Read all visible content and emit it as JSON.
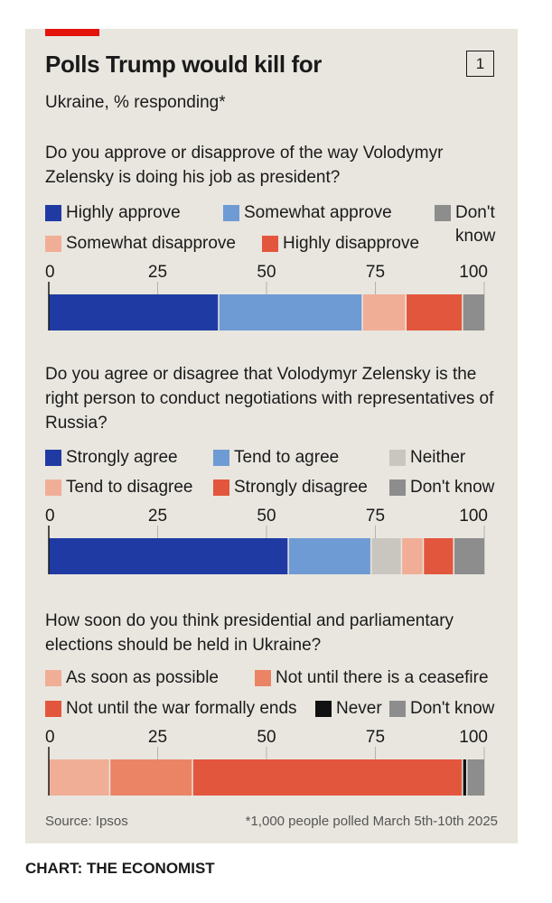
{
  "header": {
    "title": "Polls Trump would kill for",
    "chart_number": "1",
    "subtitle": "Ukraine, % responding*"
  },
  "footer": {
    "source": "Source: Ipsos",
    "footnote": "*1,000 people polled March 5th-10th 2025",
    "credit": "CHART: THE ECONOMIST"
  },
  "axis": {
    "ticks": [
      "0",
      "25",
      "50",
      "75",
      "100"
    ],
    "tick_values": [
      0,
      25,
      50,
      75,
      100
    ]
  },
  "chart_data": [
    {
      "type": "bar",
      "stacked": true,
      "orientation": "horizontal",
      "question": "Do you approve or disapprove of the way Volodymyr Zelensky is doing his job as president?",
      "xlim": [
        0,
        100
      ],
      "series": [
        {
          "name": "Highly approve",
          "value": 39,
          "color": "#1f3ba3"
        },
        {
          "name": "Somewhat approve",
          "value": 33,
          "color": "#6f9bd4"
        },
        {
          "name": "Somewhat disapprove",
          "value": 10,
          "color": "#f1ae97"
        },
        {
          "name": "Highly disapprove",
          "value": 13,
          "color": "#e3563e"
        },
        {
          "name": "Don't know",
          "value": 5,
          "color": "#8d8d8d"
        }
      ]
    },
    {
      "type": "bar",
      "stacked": true,
      "orientation": "horizontal",
      "question": "Do you agree or disagree that Volodymyr Zelensky is the right person to conduct negotiations with representatives of Russia?",
      "xlim": [
        0,
        100
      ],
      "series": [
        {
          "name": "Strongly agree",
          "value": 55,
          "color": "#1f3ba3"
        },
        {
          "name": "Tend to agree",
          "value": 19,
          "color": "#6f9bd4"
        },
        {
          "name": "Neither",
          "value": 7,
          "color": "#c9c6bf"
        },
        {
          "name": "Tend to disagree",
          "value": 5,
          "color": "#f1ae97"
        },
        {
          "name": "Strongly disagree",
          "value": 7,
          "color": "#e3563e"
        },
        {
          "name": "Don't know",
          "value": 7,
          "color": "#8d8d8d"
        }
      ]
    },
    {
      "type": "bar",
      "stacked": true,
      "orientation": "horizontal",
      "question": "How soon do you think presidential and parliamentary elections should be held in Ukraine?",
      "xlim": [
        0,
        100
      ],
      "series": [
        {
          "name": "As soon as possible",
          "value": 14,
          "color": "#f1ae97"
        },
        {
          "name": "Not until there is a ceasefire",
          "value": 19,
          "color": "#eb8465"
        },
        {
          "name": "Not until the war formally ends",
          "value": 62,
          "color": "#e3563e"
        },
        {
          "name": "Never",
          "value": 1,
          "color": "#111111"
        },
        {
          "name": "Don't know",
          "value": 4,
          "color": "#8d8d8d"
        }
      ]
    }
  ]
}
